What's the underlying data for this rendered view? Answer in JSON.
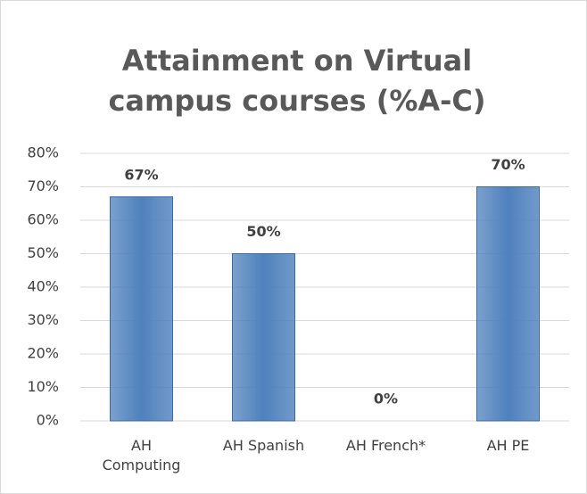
{
  "chart_data": {
    "type": "bar",
    "title": "Attainment on Virtual campus courses (%A-C)",
    "categories": [
      "AH Computing",
      "AH Spanish",
      "AH French*",
      "AH PE"
    ],
    "values": [
      67,
      50,
      0,
      70
    ],
    "value_labels": [
      "67%",
      "50%",
      "0%",
      "70%"
    ],
    "color": "#4f81bd",
    "ylim": [
      0,
      80
    ],
    "yticks": [
      {
        "value": 0,
        "label": "0%"
      },
      {
        "value": 10,
        "label": "10%"
      },
      {
        "value": 20,
        "label": "20%"
      },
      {
        "value": 30,
        "label": "30%"
      },
      {
        "value": 40,
        "label": "40%"
      },
      {
        "value": 50,
        "label": "50%"
      },
      {
        "value": 60,
        "label": "60%"
      },
      {
        "value": 70,
        "label": "70%"
      },
      {
        "value": 80,
        "label": "80%"
      }
    ],
    "grid": true
  }
}
